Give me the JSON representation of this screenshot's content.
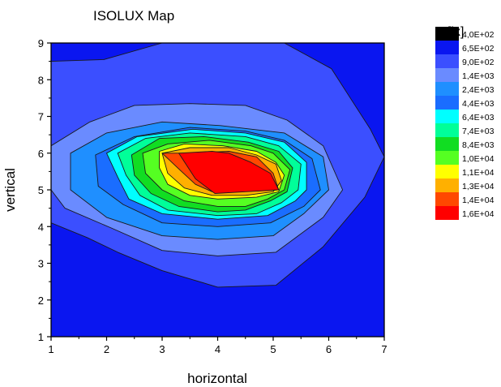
{
  "chart_data": {
    "type": "contour",
    "title": "ISOLUX Map",
    "xlabel": "horizontal",
    "ylabel": "vertical",
    "xlim": [
      1,
      7
    ],
    "ylim": [
      1,
      9
    ],
    "x_ticks": [
      "1",
      "2",
      "3",
      "4",
      "5",
      "6",
      "7"
    ],
    "y_ticks": [
      "1",
      "2",
      "3",
      "4",
      "5",
      "6",
      "7",
      "8",
      "9"
    ],
    "legend": {
      "title": "[lx]",
      "position": "right",
      "levels": [
        {
          "label": "4,0E+02",
          "color": "#000000"
        },
        {
          "label": "6,5E+02",
          "color": "#0a16f0"
        },
        {
          "label": "9,0E+02",
          "color": "#3b4fff"
        },
        {
          "label": "1,4E+03",
          "color": "#6a8bff"
        },
        {
          "label": "2,4E+03",
          "color": "#1f8fff"
        },
        {
          "label": "4,4E+03",
          "color": "#1a6dff"
        },
        {
          "label": "6,4E+03",
          "color": "#00ffff"
        },
        {
          "label": "7,4E+03",
          "color": "#00ff99"
        },
        {
          "label": "8,4E+03",
          "color": "#11dd22"
        },
        {
          "label": "1,0E+04",
          "color": "#55ff22"
        },
        {
          "label": "1,1E+04",
          "color": "#ffff00"
        },
        {
          "label": "1,3E+04",
          "color": "#ffb000"
        },
        {
          "label": "1,4E+04",
          "color": "#ff4800"
        },
        {
          "label": "1,6E+04",
          "color": "#ff0000"
        }
      ]
    },
    "background_color": "#0a16f0",
    "contour_regions": [
      {
        "level": "9,0E+02",
        "color": "#3b4fff",
        "points": [
          [
            1,
            8.5
          ],
          [
            1.95,
            8.55
          ],
          [
            3.0,
            9.0
          ],
          [
            5.2,
            9.0
          ],
          [
            6.05,
            8.3
          ],
          [
            6.75,
            6.65
          ],
          [
            7.0,
            5.9
          ],
          [
            6.65,
            4.8
          ],
          [
            5.9,
            3.45
          ],
          [
            5.05,
            2.4
          ],
          [
            4.0,
            2.35
          ],
          [
            3.0,
            2.8
          ],
          [
            2.2,
            3.3
          ],
          [
            1.65,
            3.7
          ],
          [
            1,
            4.1
          ]
        ]
      },
      {
        "level": "1,4E+03",
        "color": "#6a8bff",
        "points": [
          [
            1,
            6.2
          ],
          [
            1.7,
            6.85
          ],
          [
            2.5,
            7.3
          ],
          [
            3.5,
            7.35
          ],
          [
            4.5,
            7.3
          ],
          [
            5.25,
            6.9
          ],
          [
            5.9,
            6.2
          ],
          [
            6.25,
            5.0
          ],
          [
            5.9,
            4.25
          ],
          [
            5.05,
            3.3
          ],
          [
            4.0,
            3.2
          ],
          [
            3.0,
            3.35
          ],
          [
            2.1,
            3.95
          ],
          [
            1.25,
            4.5
          ],
          [
            1,
            5.0
          ]
        ]
      },
      {
        "level": "2,4E+03",
        "color": "#1f8fff",
        "points": [
          [
            1.35,
            6.0
          ],
          [
            2.0,
            6.55
          ],
          [
            3.0,
            6.85
          ],
          [
            4.05,
            6.75
          ],
          [
            5.2,
            6.55
          ],
          [
            5.9,
            5.9
          ],
          [
            6.0,
            5.0
          ],
          [
            5.55,
            4.35
          ],
          [
            5.0,
            3.75
          ],
          [
            4.0,
            3.65
          ],
          [
            3.0,
            3.75
          ],
          [
            2.0,
            4.25
          ],
          [
            1.35,
            5.0
          ]
        ]
      },
      {
        "level": "4,4E+03",
        "color": "#1a6dff",
        "points": [
          [
            1.8,
            5.95
          ],
          [
            2.5,
            6.45
          ],
          [
            3.5,
            6.7
          ],
          [
            4.5,
            6.6
          ],
          [
            5.2,
            6.35
          ],
          [
            5.7,
            5.85
          ],
          [
            5.85,
            5.0
          ],
          [
            5.55,
            4.55
          ],
          [
            4.95,
            4.1
          ],
          [
            4.0,
            4.0
          ],
          [
            3.0,
            4.1
          ],
          [
            2.3,
            4.6
          ],
          [
            1.85,
            5.1
          ]
        ]
      },
      {
        "level": "6,4E+03",
        "color": "#00ffff",
        "points": [
          [
            2.0,
            6.0
          ],
          [
            2.55,
            6.45
          ],
          [
            3.55,
            6.65
          ],
          [
            4.5,
            6.55
          ],
          [
            5.2,
            6.3
          ],
          [
            5.6,
            5.75
          ],
          [
            5.6,
            5.0
          ],
          [
            5.4,
            4.7
          ],
          [
            4.9,
            4.3
          ],
          [
            4.0,
            4.2
          ],
          [
            3.0,
            4.35
          ],
          [
            2.4,
            4.75
          ],
          [
            2.2,
            5.35
          ]
        ]
      },
      {
        "level": "7,4E+03",
        "color": "#00ff99",
        "points": [
          [
            2.2,
            6.0
          ],
          [
            2.7,
            6.4
          ],
          [
            3.5,
            6.55
          ],
          [
            4.5,
            6.45
          ],
          [
            5.1,
            6.2
          ],
          [
            5.5,
            5.7
          ],
          [
            5.45,
            5.0
          ],
          [
            5.15,
            4.65
          ],
          [
            4.7,
            4.35
          ],
          [
            4.0,
            4.3
          ],
          [
            3.1,
            4.45
          ],
          [
            2.6,
            4.85
          ],
          [
            2.35,
            5.4
          ]
        ]
      },
      {
        "level": "8,4E+03",
        "color": "#11dd22",
        "points": [
          [
            2.45,
            5.95
          ],
          [
            2.95,
            6.4
          ],
          [
            3.75,
            6.45
          ],
          [
            4.55,
            6.3
          ],
          [
            5.1,
            6.05
          ],
          [
            5.35,
            5.6
          ],
          [
            5.25,
            4.95
          ],
          [
            4.95,
            4.7
          ],
          [
            4.5,
            4.45
          ],
          [
            4.0,
            4.4
          ],
          [
            3.3,
            4.55
          ],
          [
            2.8,
            4.9
          ],
          [
            2.5,
            5.4
          ]
        ]
      },
      {
        "level": "1,0E+04",
        "color": "#55ff22",
        "points": [
          [
            2.65,
            6.0
          ],
          [
            3.1,
            6.25
          ],
          [
            3.85,
            6.35
          ],
          [
            4.6,
            6.2
          ],
          [
            5.0,
            6.0
          ],
          [
            5.3,
            5.55
          ],
          [
            5.2,
            5.0
          ],
          [
            4.9,
            4.75
          ],
          [
            4.5,
            4.55
          ],
          [
            4.0,
            4.55
          ],
          [
            3.4,
            4.7
          ],
          [
            3.0,
            5.0
          ],
          [
            2.7,
            5.45
          ]
        ]
      },
      {
        "level": "1,1E+04",
        "color": "#ffff00",
        "points": [
          [
            2.95,
            6.05
          ],
          [
            3.4,
            6.25
          ],
          [
            4.1,
            6.2
          ],
          [
            4.7,
            6.05
          ],
          [
            5.05,
            5.75
          ],
          [
            5.2,
            5.4
          ],
          [
            5.1,
            4.95
          ],
          [
            4.7,
            4.8
          ],
          [
            4.0,
            4.75
          ],
          [
            3.5,
            4.85
          ],
          [
            3.1,
            5.15
          ],
          [
            2.95,
            5.6
          ]
        ]
      },
      {
        "level": "1,3E+04",
        "color": "#ffb000",
        "points": [
          [
            3.0,
            6.0
          ],
          [
            3.5,
            6.15
          ],
          [
            4.2,
            6.15
          ],
          [
            4.7,
            5.95
          ],
          [
            5.05,
            5.7
          ],
          [
            5.15,
            5.25
          ],
          [
            5.0,
            4.95
          ],
          [
            4.5,
            4.85
          ],
          [
            3.9,
            4.85
          ],
          [
            3.4,
            5.05
          ],
          [
            3.1,
            5.45
          ]
        ]
      },
      {
        "level": "1,4E+04",
        "color": "#ff4800",
        "points": [
          [
            3.0,
            6.0
          ],
          [
            3.5,
            6.0
          ],
          [
            4.2,
            6.05
          ],
          [
            4.7,
            5.9
          ],
          [
            5.0,
            5.45
          ],
          [
            5.1,
            5.0
          ],
          [
            4.4,
            4.95
          ],
          [
            3.9,
            4.95
          ],
          [
            3.6,
            5.15
          ],
          [
            3.35,
            5.5
          ]
        ]
      },
      {
        "level": "1,6E+04",
        "color": "#ff0000",
        "points": [
          [
            3.3,
            6.0
          ],
          [
            3.9,
            6.05
          ],
          [
            4.2,
            6.0
          ],
          [
            4.6,
            5.75
          ],
          [
            4.95,
            5.45
          ],
          [
            5.1,
            5.0
          ],
          [
            4.5,
            4.95
          ],
          [
            3.95,
            4.9
          ],
          [
            3.6,
            5.3
          ]
        ]
      }
    ]
  }
}
